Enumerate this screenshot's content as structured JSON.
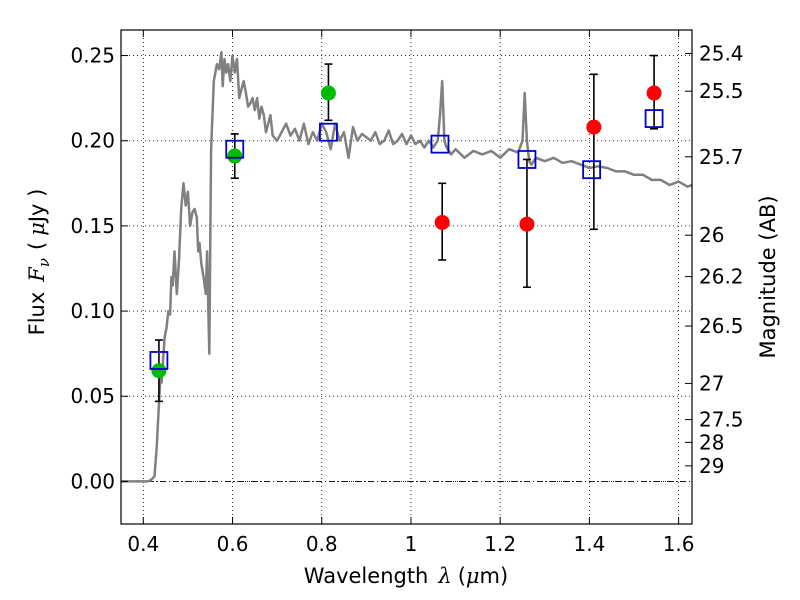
{
  "chart_data": {
    "type": "scatter",
    "title": "",
    "xlabel": "Wavelength",
    "xlabel_symbol": "λ",
    "xlabel_unit_open": "(",
    "xlabel_unit_mu": "μ",
    "xlabel_unit_rest": "m)",
    "ylabel": "Flux",
    "ylabel_symbol_F": "F",
    "ylabel_symbol_sub": "ν",
    "ylabel_unit_open": "(",
    "ylabel_unit_mu": "μ",
    "ylabel_unit_rest": "Jy )",
    "y2label": "Magnitude (AB)",
    "xlim": [
      0.35,
      1.63
    ],
    "ylim": [
      -0.025,
      0.265
    ],
    "x_ticks": [
      {
        "value": 0.4,
        "label": "0.4"
      },
      {
        "value": 0.6,
        "label": "0.6"
      },
      {
        "value": 0.8,
        "label": "0.8"
      },
      {
        "value": 1.0,
        "label": "1"
      },
      {
        "value": 1.2,
        "label": "1.2"
      },
      {
        "value": 1.4,
        "label": "1.4"
      },
      {
        "value": 1.6,
        "label": "1.6"
      }
    ],
    "y_ticks": [
      {
        "value": 0.0,
        "label": "0.00"
      },
      {
        "value": 0.05,
        "label": "0.05"
      },
      {
        "value": 0.1,
        "label": "0.10"
      },
      {
        "value": 0.15,
        "label": "0.15"
      },
      {
        "value": 0.2,
        "label": "0.20"
      },
      {
        "value": 0.25,
        "label": "0.25"
      }
    ],
    "mag_ticks": [
      {
        "value": 25.4,
        "label": "25.4"
      },
      {
        "value": 25.5,
        "label": "25.5"
      },
      {
        "value": 25.7,
        "label": "25.7"
      },
      {
        "value": 26.0,
        "label": "26"
      },
      {
        "value": 26.2,
        "label": "26.2"
      },
      {
        "value": 26.5,
        "label": "26.5"
      },
      {
        "value": 27.0,
        "label": "27"
      },
      {
        "value": 27.5,
        "label": "27.5"
      },
      {
        "value": 28.0,
        "label": "28"
      },
      {
        "value": 29.0,
        "label": "29"
      }
    ],
    "grid": true,
    "colors": {
      "template": "#808080",
      "optical": "#00bb00",
      "infrared": "#ff0000",
      "model": "#0000cc",
      "errorbar": "#000000"
    },
    "template_sed": {
      "x": [
        0.35,
        0.37,
        0.39,
        0.4,
        0.41,
        0.418,
        0.425,
        0.43,
        0.435,
        0.438,
        0.441,
        0.444,
        0.448,
        0.452,
        0.456,
        0.46,
        0.463,
        0.466,
        0.47,
        0.475,
        0.48,
        0.485,
        0.49,
        0.495,
        0.5,
        0.505,
        0.51,
        0.515,
        0.52,
        0.523,
        0.526,
        0.53,
        0.535,
        0.54,
        0.543,
        0.548,
        0.552,
        0.558,
        0.565,
        0.57,
        0.575,
        0.578,
        0.582,
        0.586,
        0.59,
        0.595,
        0.6,
        0.605,
        0.61,
        0.615,
        0.62,
        0.625,
        0.63,
        0.635,
        0.64,
        0.645,
        0.65,
        0.655,
        0.66,
        0.665,
        0.67,
        0.675,
        0.68,
        0.685,
        0.69,
        0.7,
        0.71,
        0.72,
        0.73,
        0.74,
        0.75,
        0.76,
        0.77,
        0.78,
        0.79,
        0.8,
        0.81,
        0.82,
        0.83,
        0.84,
        0.85,
        0.86,
        0.87,
        0.88,
        0.89,
        0.9,
        0.91,
        0.92,
        0.93,
        0.94,
        0.95,
        0.96,
        0.97,
        0.98,
        0.99,
        1.0,
        1.01,
        1.02,
        1.03,
        1.04,
        1.05,
        1.06,
        1.065,
        1.07,
        1.075,
        1.08,
        1.09,
        1.1,
        1.12,
        1.14,
        1.16,
        1.18,
        1.2,
        1.22,
        1.24,
        1.25,
        1.255,
        1.26,
        1.265,
        1.27,
        1.28,
        1.3,
        1.32,
        1.34,
        1.36,
        1.38,
        1.4,
        1.42,
        1.44,
        1.46,
        1.48,
        1.5,
        1.52,
        1.54,
        1.56,
        1.58,
        1.6,
        1.62,
        1.63
      ],
      "y": [
        0.0,
        0.0,
        0.0,
        0.0,
        0.0,
        0.001,
        0.003,
        0.02,
        0.045,
        0.06,
        0.058,
        0.07,
        0.085,
        0.09,
        0.1,
        0.098,
        0.12,
        0.115,
        0.135,
        0.11,
        0.13,
        0.16,
        0.175,
        0.162,
        0.17,
        0.15,
        0.158,
        0.16,
        0.155,
        0.135,
        0.14,
        0.128,
        0.12,
        0.11,
        0.135,
        0.075,
        0.195,
        0.235,
        0.245,
        0.242,
        0.252,
        0.232,
        0.248,
        0.24,
        0.245,
        0.235,
        0.25,
        0.24,
        0.248,
        0.225,
        0.23,
        0.235,
        0.228,
        0.22,
        0.222,
        0.225,
        0.218,
        0.225,
        0.213,
        0.22,
        0.215,
        0.205,
        0.21,
        0.215,
        0.203,
        0.2,
        0.205,
        0.21,
        0.203,
        0.207,
        0.2,
        0.21,
        0.198,
        0.205,
        0.2,
        0.21,
        0.205,
        0.195,
        0.21,
        0.2,
        0.205,
        0.19,
        0.208,
        0.2,
        0.204,
        0.202,
        0.2,
        0.205,
        0.198,
        0.2,
        0.206,
        0.198,
        0.2,
        0.204,
        0.198,
        0.203,
        0.198,
        0.2,
        0.196,
        0.2,
        0.196,
        0.2,
        0.215,
        0.235,
        0.2,
        0.196,
        0.192,
        0.195,
        0.19,
        0.194,
        0.192,
        0.194,
        0.19,
        0.195,
        0.193,
        0.2,
        0.228,
        0.2,
        0.188,
        0.186,
        0.19,
        0.188,
        0.19,
        0.187,
        0.188,
        0.186,
        0.184,
        0.185,
        0.184,
        0.182,
        0.182,
        0.18,
        0.18,
        0.177,
        0.177,
        0.174,
        0.176,
        0.173,
        0.174
      ]
    },
    "optical_points": {
      "x": [
        0.435,
        0.605,
        0.815
      ],
      "y": [
        0.065,
        0.191,
        0.228
      ],
      "err_low": [
        0.018,
        0.013,
        0.016
      ],
      "err_high": [
        0.018,
        0.013,
        0.017
      ]
    },
    "infrared_points": {
      "x": [
        1.07,
        1.26,
        1.41,
        1.545
      ],
      "y": [
        0.152,
        0.151,
        0.208,
        0.228
      ],
      "err_low": [
        0.022,
        0.037,
        0.06,
        0.021
      ],
      "err_high": [
        0.023,
        0.038,
        0.031,
        0.022
      ]
    },
    "model_points": {
      "x": [
        0.435,
        0.605,
        0.815,
        1.065,
        1.26,
        1.405,
        1.545
      ],
      "y": [
        0.071,
        0.195,
        0.205,
        0.198,
        0.189,
        0.183,
        0.213
      ]
    }
  }
}
